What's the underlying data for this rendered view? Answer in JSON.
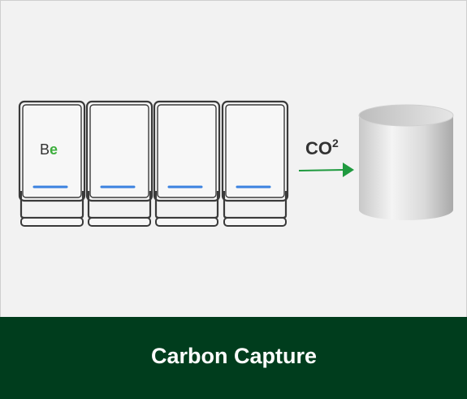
{
  "logo": {
    "first": "B",
    "second": "e"
  },
  "gas": {
    "formula": "CO",
    "superscript": "2"
  },
  "footer": {
    "title": "Carbon Capture"
  }
}
